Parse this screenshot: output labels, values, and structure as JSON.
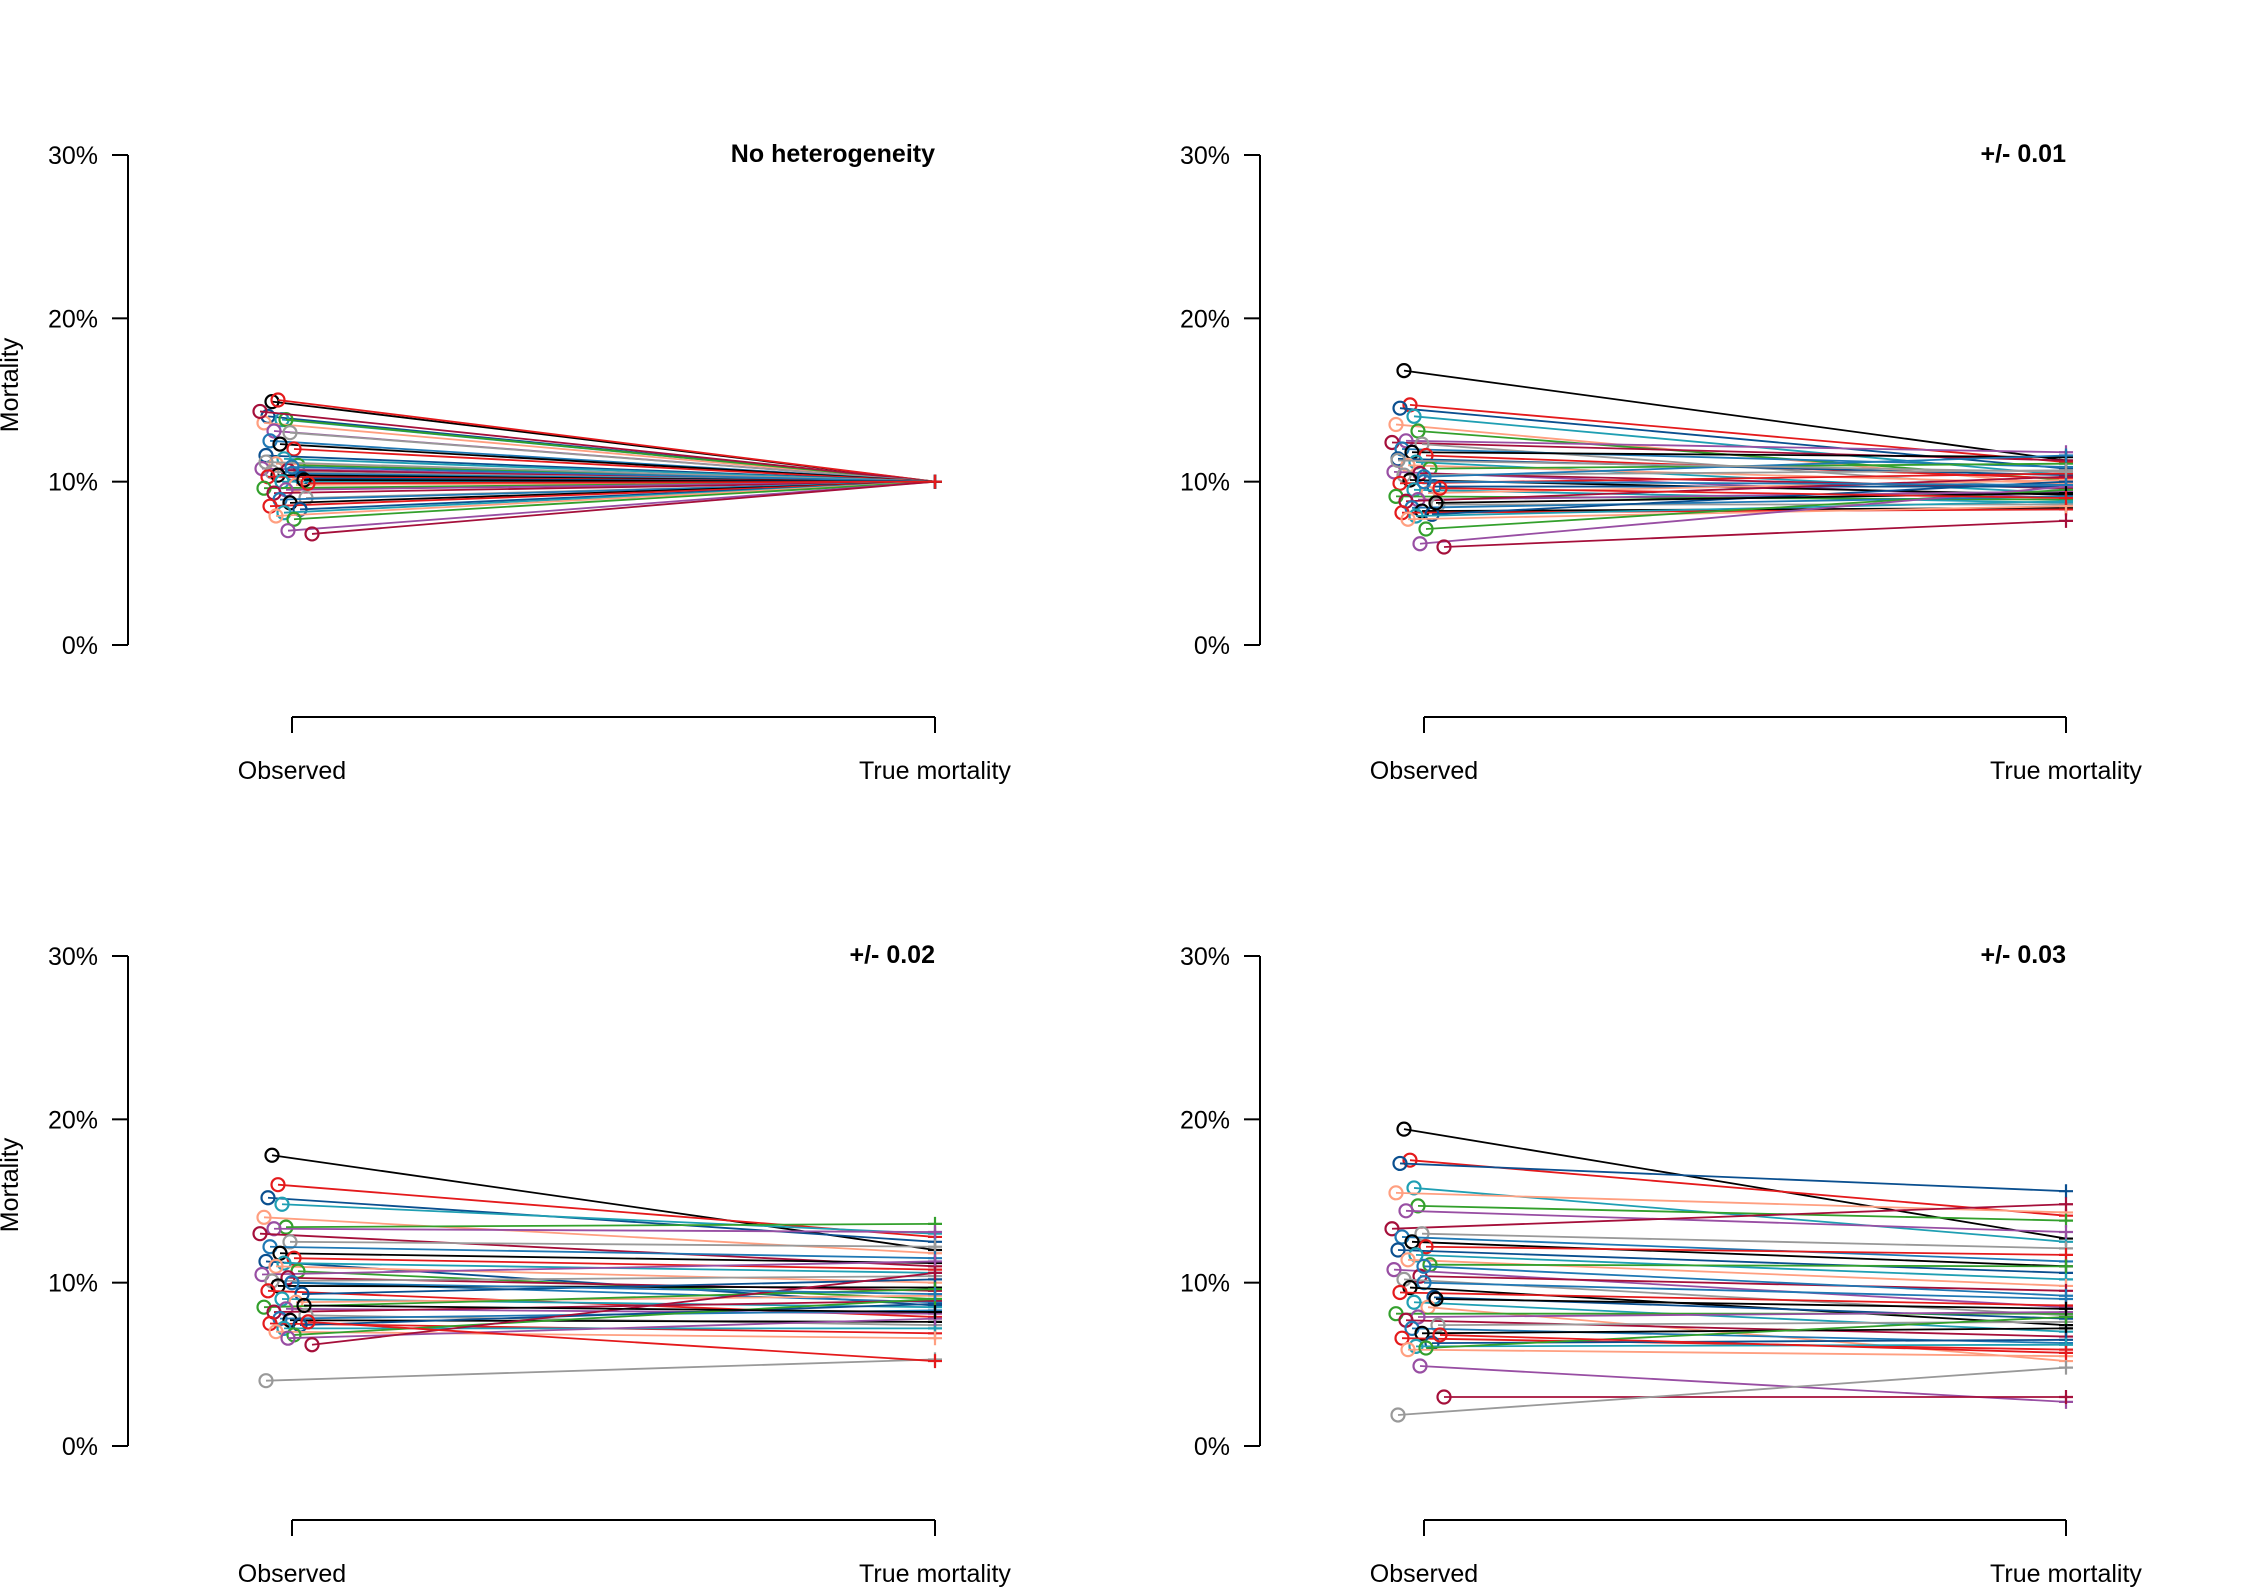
{
  "figure": {
    "yticks": [
      "0%",
      "10%",
      "20%",
      "30%"
    ],
    "xticks": [
      "Observed",
      "True mortality"
    ]
  },
  "palette": [
    "#000000",
    "#e41a1c",
    "#0a4f8f",
    "#1f9fb3",
    "#ff9f80",
    "#33a02c",
    "#984ea3",
    "#a50f3a",
    "#999999",
    "#1f78b4"
  ],
  "chart_data": [
    {
      "type": "line",
      "title": "No heterogeneity",
      "ylabel": "Mortality",
      "ylim": [
        0,
        0.3
      ],
      "x_categories": [
        "Observed",
        "True mortality"
      ],
      "observed": [
        0.149,
        0.15,
        0.14,
        0.138,
        0.136,
        0.138,
        0.131,
        0.143,
        0.13,
        0.125,
        0.123,
        0.12,
        0.116,
        0.114,
        0.111,
        0.11,
        0.108,
        0.107,
        0.106,
        0.105,
        0.104,
        0.103,
        0.102,
        0.1,
        0.098,
        0.096,
        0.095,
        0.093,
        0.09,
        0.089,
        0.087,
        0.085,
        0.083,
        0.081,
        0.079,
        0.077,
        0.07,
        0.068,
        0.112,
        0.109,
        0.101,
        0.099
      ],
      "true": [
        0.1,
        0.1,
        0.1,
        0.1,
        0.1,
        0.1,
        0.1,
        0.1,
        0.1,
        0.1,
        0.1,
        0.1,
        0.1,
        0.1,
        0.1,
        0.1,
        0.1,
        0.1,
        0.1,
        0.1,
        0.1,
        0.1,
        0.1,
        0.1,
        0.1,
        0.1,
        0.1,
        0.1,
        0.1,
        0.1,
        0.1,
        0.1,
        0.1,
        0.1,
        0.1,
        0.1,
        0.1,
        0.1,
        0.1,
        0.1,
        0.1,
        0.1
      ]
    },
    {
      "type": "line",
      "title": "+/- 0.01",
      "ylabel": "",
      "ylim": [
        0,
        0.3
      ],
      "x_categories": [
        "Observed",
        "True mortality"
      ],
      "observed": [
        0.168,
        0.147,
        0.145,
        0.14,
        0.135,
        0.131,
        0.125,
        0.124,
        0.123,
        0.12,
        0.118,
        0.116,
        0.114,
        0.112,
        0.11,
        0.108,
        0.106,
        0.105,
        0.104,
        0.103,
        0.101,
        0.099,
        0.097,
        0.095,
        0.093,
        0.091,
        0.089,
        0.088,
        0.086,
        0.084,
        0.082,
        0.081,
        0.08,
        0.079,
        0.077,
        0.071,
        0.062,
        0.06,
        0.113,
        0.1,
        0.087,
        0.096
      ],
      "true": [
        0.113,
        0.112,
        0.108,
        0.104,
        0.098,
        0.101,
        0.118,
        0.113,
        0.095,
        0.109,
        0.115,
        0.102,
        0.104,
        0.093,
        0.099,
        0.111,
        0.09,
        0.096,
        0.107,
        0.116,
        0.092,
        0.105,
        0.097,
        0.087,
        0.101,
        0.089,
        0.094,
        0.103,
        0.086,
        0.091,
        0.084,
        0.083,
        0.1,
        0.088,
        0.085,
        0.095,
        0.097,
        0.076,
        0.106,
        0.098,
        0.093,
        0.09
      ]
    },
    {
      "type": "line",
      "title": "+/- 0.02",
      "ylabel": "Mortality",
      "ylim": [
        0,
        0.3
      ],
      "x_categories": [
        "Observed",
        "True mortality"
      ],
      "observed": [
        0.178,
        0.16,
        0.152,
        0.148,
        0.14,
        0.134,
        0.133,
        0.13,
        0.125,
        0.122,
        0.118,
        0.115,
        0.113,
        0.112,
        0.11,
        0.107,
        0.105,
        0.103,
        0.101,
        0.1,
        0.098,
        0.095,
        0.093,
        0.09,
        0.088,
        0.085,
        0.084,
        0.082,
        0.08,
        0.078,
        0.077,
        0.075,
        0.074,
        0.072,
        0.07,
        0.068,
        0.066,
        0.062,
        0.04,
        0.1,
        0.086,
        0.076
      ],
      "true": [
        0.12,
        0.128,
        0.125,
        0.13,
        0.118,
        0.136,
        0.131,
        0.11,
        0.122,
        0.115,
        0.112,
        0.108,
        0.086,
        0.106,
        0.1,
        0.09,
        0.113,
        0.095,
        0.104,
        0.088,
        0.097,
        0.079,
        0.102,
        0.085,
        0.092,
        0.096,
        0.081,
        0.089,
        0.074,
        0.083,
        0.076,
        0.069,
        0.087,
        0.072,
        0.066,
        0.09,
        0.078,
        0.106,
        0.053,
        0.093,
        0.082,
        0.052
      ]
    },
    {
      "type": "line",
      "title": "+/- 0.03",
      "ylabel": "",
      "ylim": [
        0,
        0.3
      ],
      "x_categories": [
        "Observed",
        "True mortality"
      ],
      "observed": [
        0.194,
        0.175,
        0.173,
        0.158,
        0.155,
        0.147,
        0.144,
        0.133,
        0.13,
        0.128,
        0.125,
        0.122,
        0.12,
        0.117,
        0.114,
        0.111,
        0.108,
        0.104,
        0.102,
        0.1,
        0.097,
        0.094,
        0.091,
        0.088,
        0.085,
        0.081,
        0.079,
        0.077,
        0.074,
        0.072,
        0.069,
        0.066,
        0.063,
        0.061,
        0.059,
        0.06,
        0.049,
        0.03,
        0.019,
        0.11,
        0.09,
        0.068
      ],
      "true": [
        0.127,
        0.141,
        0.156,
        0.125,
        0.143,
        0.138,
        0.131,
        0.148,
        0.121,
        0.113,
        0.11,
        0.117,
        0.106,
        0.102,
        0.098,
        0.11,
        0.085,
        0.095,
        0.08,
        0.09,
        0.074,
        0.086,
        0.078,
        0.07,
        0.052,
        0.081,
        0.082,
        0.067,
        0.076,
        0.063,
        0.072,
        0.059,
        0.065,
        0.062,
        0.055,
        0.079,
        0.027,
        0.03,
        0.048,
        0.092,
        0.084,
        0.057
      ]
    }
  ]
}
